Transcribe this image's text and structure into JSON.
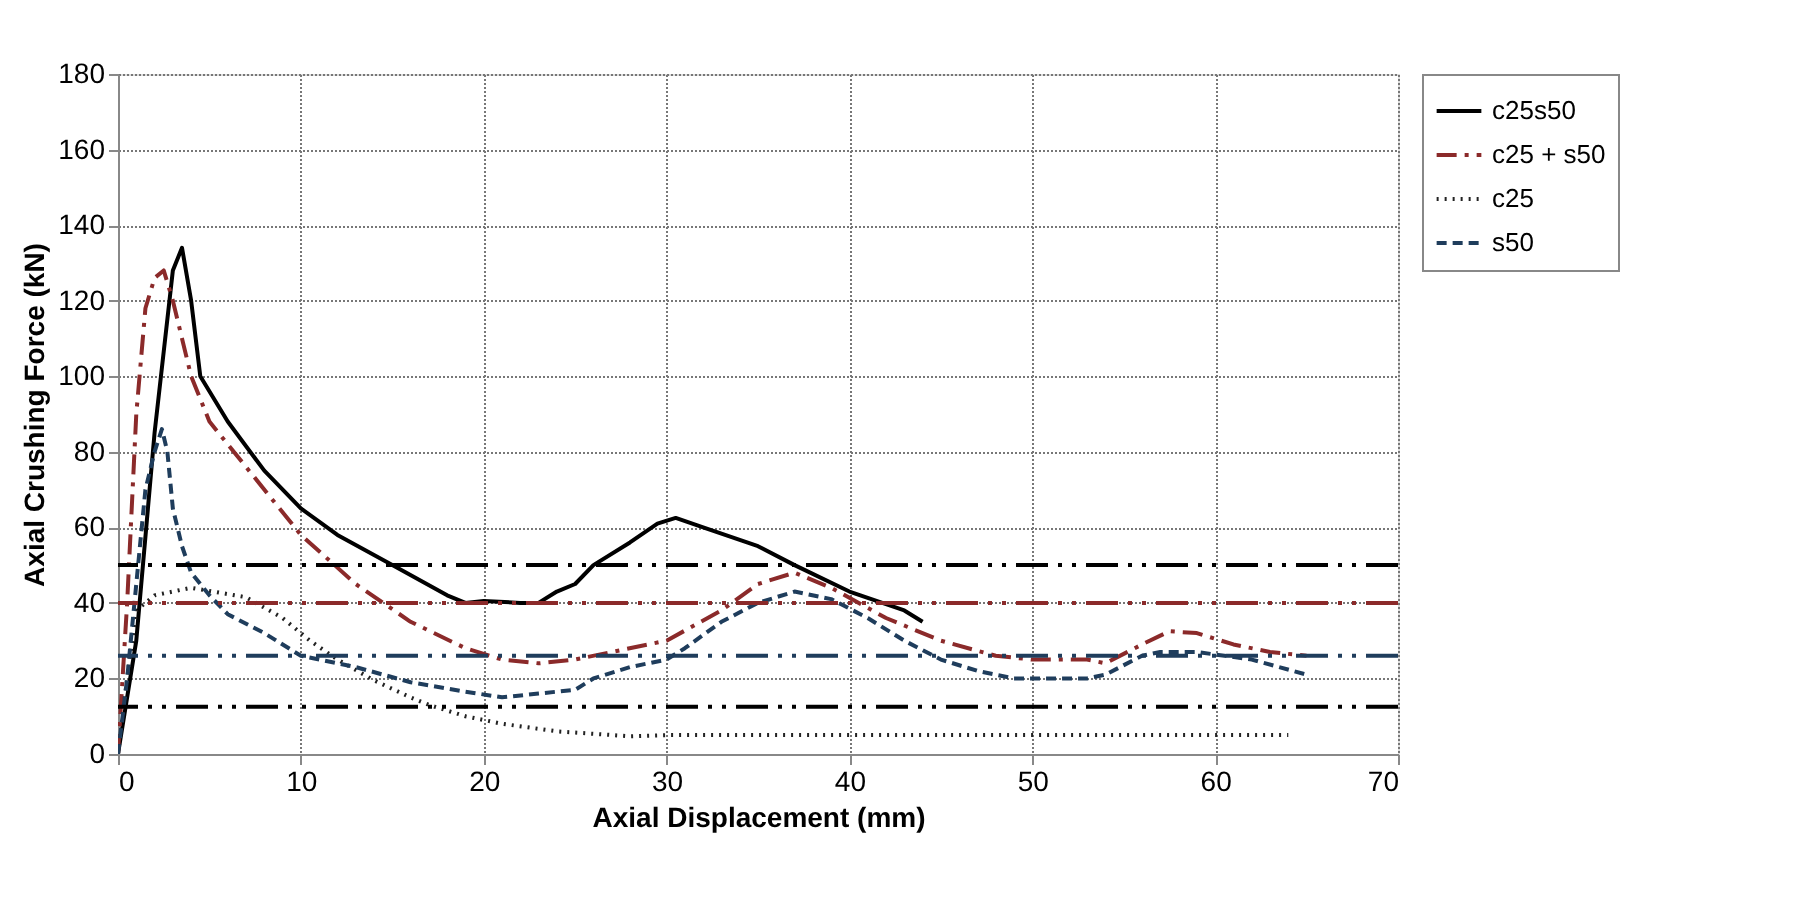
{
  "chart_data": {
    "type": "line",
    "xlabel": "Axial Displacement (mm)",
    "ylabel": "Axial Crushing Force (kN)",
    "xlim": [
      0,
      70
    ],
    "xticks": [
      0,
      10,
      20,
      30,
      40,
      50,
      60,
      70
    ],
    "ylim": [
      0,
      180
    ],
    "yticks": [
      0,
      20,
      40,
      60,
      80,
      100,
      120,
      140,
      160,
      180
    ],
    "grid": true,
    "legend": "right",
    "series": [
      {
        "name": "c25s50",
        "color": "#000000",
        "line_style": "solid",
        "x": [
          0,
          1,
          2,
          3,
          3.5,
          4,
          4.5,
          6,
          8,
          10,
          12,
          15,
          18,
          19,
          20,
          22,
          23,
          24,
          25,
          26,
          28,
          29.5,
          30.5,
          32,
          35,
          37,
          40,
          43,
          44
        ],
        "values": [
          0,
          30,
          85,
          128,
          134,
          120,
          100,
          88,
          75,
          65,
          58,
          50,
          42,
          40,
          40.5,
          40,
          40,
          43,
          45,
          50,
          56,
          61,
          62.5,
          60,
          55,
          50,
          43,
          38,
          35
        ]
      },
      {
        "name": "c25 + s50",
        "color": "#8b2a2a",
        "line_style": "dashdot",
        "x": [
          0,
          0.5,
          1,
          1.5,
          2,
          2.5,
          3,
          4,
          5,
          7,
          10,
          13,
          16,
          19,
          21,
          23,
          25,
          27,
          30,
          33,
          35,
          37,
          39,
          42,
          45,
          48,
          50,
          53,
          54,
          56,
          57.5,
          59,
          61,
          63,
          65
        ],
        "values": [
          0,
          40,
          90,
          118,
          126,
          128,
          120,
          100,
          88,
          76,
          58,
          45,
          35,
          28,
          25,
          24,
          25,
          27,
          30,
          38,
          45,
          48,
          44,
          36,
          30,
          26,
          25,
          25,
          24,
          29,
          32.5,
          32,
          29,
          27,
          26
        ]
      },
      {
        "name": "c25",
        "color": "#222222",
        "line_style": "dotted",
        "x": [
          0,
          0.5,
          1,
          2,
          3,
          4,
          7,
          9,
          10.5,
          12,
          14,
          16,
          17,
          19,
          21,
          24,
          28,
          30,
          40,
          50,
          60,
          64
        ],
        "values": [
          0,
          20,
          38,
          42,
          43,
          44,
          41.5,
          36,
          30,
          25,
          19.5,
          15,
          13,
          10,
          8,
          6,
          4.7,
          5,
          5,
          5,
          5,
          5
        ]
      },
      {
        "name": "s50",
        "color": "#1f3d5c",
        "line_style": "dashed",
        "x": [
          0,
          0.5,
          1,
          1.5,
          2,
          2.4,
          2.7,
          3,
          3.5,
          4,
          5,
          6,
          8,
          10,
          13,
          16,
          19,
          21,
          23,
          25,
          26,
          28,
          30,
          31,
          33,
          35,
          37,
          39,
          41,
          43,
          45,
          47,
          49,
          53,
          54,
          56,
          57,
          59,
          62,
          65
        ],
        "values": [
          0,
          20,
          45,
          70,
          80,
          86,
          80,
          65,
          55,
          48,
          42,
          37,
          32,
          26,
          23,
          19,
          16.5,
          15,
          16,
          17,
          20,
          23,
          25,
          28,
          35,
          40,
          43,
          41,
          36,
          30,
          25,
          22,
          20,
          20,
          21,
          26,
          27,
          27,
          25,
          21
        ]
      }
    ],
    "ref_lines": [
      {
        "axis": "y",
        "value": 50,
        "color": "#000000"
      },
      {
        "axis": "y",
        "value": 40,
        "color": "#8b2a2a"
      },
      {
        "axis": "y",
        "value": 26,
        "color": "#1f3d5c"
      },
      {
        "axis": "y",
        "value": 12.5,
        "color": "#000000"
      }
    ]
  }
}
